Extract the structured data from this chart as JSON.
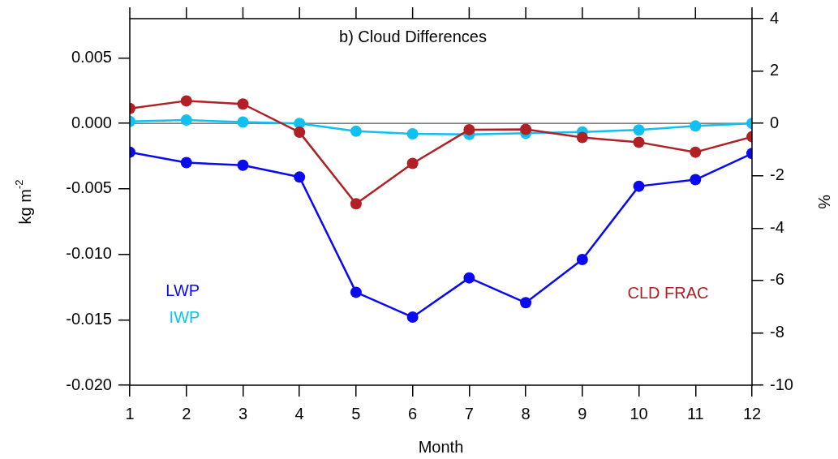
{
  "chart_data": {
    "type": "line",
    "title": "b) Cloud Differences",
    "xlabel": "Month",
    "ylabel": "kg m$^{-2}$",
    "y2label": "%",
    "x": [
      1,
      2,
      3,
      4,
      5,
      6,
      7,
      8,
      9,
      10,
      11,
      12
    ],
    "xlim": [
      1,
      12
    ],
    "xticks": [
      1,
      2,
      3,
      4,
      5,
      6,
      7,
      8,
      9,
      10,
      11,
      12
    ],
    "ylim": [
      -0.02,
      0.008
    ],
    "yticks": [
      {
        "value": -0.02,
        "label": "-0.020"
      },
      -0.015,
      {
        "value": -0.01,
        "label": "-0.010"
      },
      -0.005,
      {
        "value": 0,
        "label": "0.000"
      },
      0.005
    ],
    "y2lim": [
      -10,
      4
    ],
    "y2ticks": [
      -10,
      -8,
      -6,
      -4,
      -2,
      0,
      2,
      4
    ],
    "marker": "circle",
    "legend": false,
    "ref_lines": [
      {
        "axis": "y",
        "value": 0,
        "color": "#555555"
      }
    ],
    "series": [
      {
        "name": "LWP",
        "color": "#0a0af0",
        "values": [
          -0.0022,
          -0.003,
          -0.0032,
          -0.0041,
          -0.0129,
          -0.0148,
          -0.0118,
          -0.0137,
          -0.0104,
          -0.0048,
          -0.0043,
          -0.0023
        ]
      },
      {
        "name": "IWP",
        "color": "#10c0f0",
        "values": [
          0.00015,
          0.00025,
          0.0001,
          0,
          -0.0006,
          -0.0008,
          -0.00085,
          -0.00075,
          -0.00065,
          -0.0005,
          -0.0002,
          0
        ]
      },
      {
        "name": "CLD FRAC",
        "color": "#b02025",
        "axis": "y2",
        "values": [
          0.57,
          0.86,
          0.74,
          -0.34,
          -3.07,
          -1.53,
          -0.24,
          -0.23,
          -0.54,
          -0.72,
          -1.1,
          -0.51
        ]
      }
    ]
  }
}
